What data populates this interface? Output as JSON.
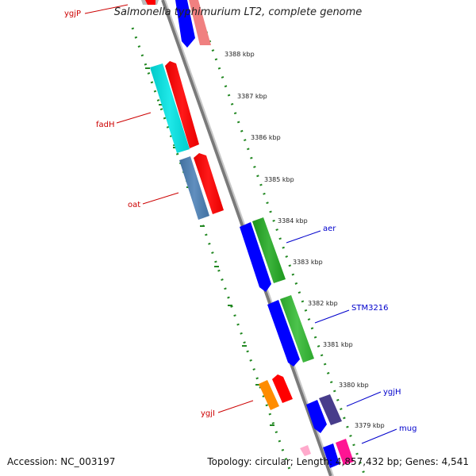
{
  "title": "Salmonella typhimurium LT2, complete genome",
  "footer": {
    "accession": "Accession: NC_003197",
    "summary": "Topology: circular; Length: 4,857,432 bp; Genes: 4,541"
  },
  "ticks": [
    "3388 kbp",
    "3387 kbp",
    "3386 kbp",
    "3385 kbp",
    "3384 kbp",
    "3383 kbp",
    "3382 kbp",
    "3381 kbp",
    "3380 kbp",
    "3379 kbp"
  ],
  "genes": [
    {
      "name": "ygjP",
      "side": "left",
      "color": "#cc0000"
    },
    {
      "name": "fadH",
      "side": "left",
      "color": "#cc0000"
    },
    {
      "name": "oat",
      "side": "left",
      "color": "#cc0000"
    },
    {
      "name": "aer",
      "side": "right",
      "color": "#0000cc"
    },
    {
      "name": "STM3216",
      "side": "right",
      "color": "#0000cc"
    },
    {
      "name": "ygjH",
      "side": "right",
      "color": "#0000cc"
    },
    {
      "name": "ygjI",
      "side": "left",
      "color": "#cc0000"
    },
    {
      "name": "mug",
      "side": "right",
      "color": "#0000cc"
    }
  ],
  "colors": {
    "backbone": "#7a7a7a",
    "dotted_ring": "#228822",
    "reverse_labels": "#cc0000",
    "forward_labels": "#0000cc"
  }
}
